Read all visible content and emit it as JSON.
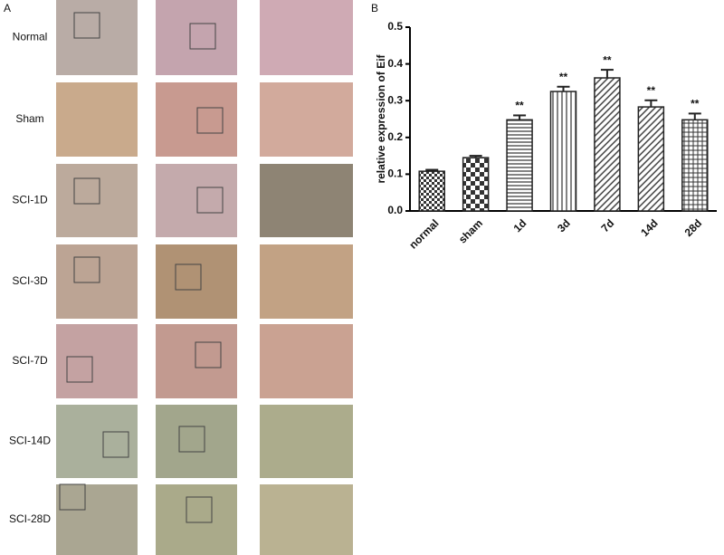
{
  "panel_labels": [
    "A",
    "B"
  ],
  "rows": [
    "Normal",
    "Sham",
    "SCI-1D",
    "SCI-3D",
    "SCI-7D",
    "SCI-14D",
    "SCI-28D"
  ],
  "chart_data": {
    "type": "bar",
    "y_label": "relative expression of Eif",
    "categories": [
      "normal",
      "sham",
      "1d",
      "3d",
      "7d",
      "14d",
      "28d"
    ],
    "values": [
      0.108,
      0.145,
      0.248,
      0.325,
      0.362,
      0.283,
      0.248
    ],
    "errors": [
      0.004,
      0.005,
      0.012,
      0.013,
      0.022,
      0.018,
      0.017
    ],
    "significance_labels": [
      null,
      null,
      "**",
      "**",
      "**",
      "**",
      "**"
    ],
    "patterns": [
      "checker-fine",
      "checker",
      "horizontal",
      "vertical",
      "diagonal",
      "diagonal",
      "grid"
    ],
    "color": "#222222",
    "ylim": [
      0,
      0.5
    ],
    "yticks": [
      {
        "value": 0,
        "label": "0.0"
      },
      0.1,
      0.2,
      0.3,
      0.4,
      0.5
    ]
  }
}
